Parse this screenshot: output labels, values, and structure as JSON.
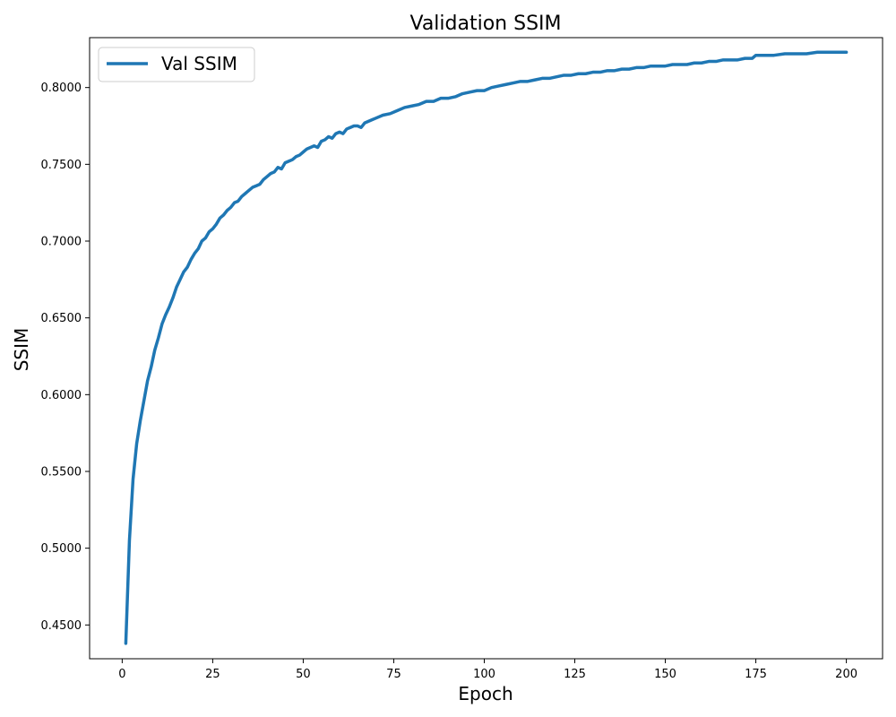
{
  "chart_data": {
    "type": "line",
    "title": "Validation SSIM",
    "xlabel": "Epoch",
    "ylabel": "SSIM",
    "xlim": [
      -9,
      210
    ],
    "ylim": [
      0.428,
      0.8325
    ],
    "x_ticks": [
      0,
      25,
      50,
      75,
      100,
      125,
      150,
      175,
      200
    ],
    "y_ticks": [
      0.45,
      0.5,
      0.55,
      0.6,
      0.65,
      0.7,
      0.75,
      0.8
    ],
    "x_tick_labels": [
      "0",
      "25",
      "50",
      "75",
      "100",
      "125",
      "150",
      "175",
      "200"
    ],
    "y_tick_labels": [
      "0.4500",
      "0.5000",
      "0.5500",
      "0.6000",
      "0.6500",
      "0.7000",
      "0.7500",
      "0.8000"
    ],
    "grid": false,
    "legend_position": "upper-left",
    "series": [
      {
        "name": "Val SSIM",
        "color": "#1f77b4",
        "points": [
          [
            1,
            0.438
          ],
          [
            2,
            0.505
          ],
          [
            3,
            0.545
          ],
          [
            4,
            0.568
          ],
          [
            5,
            0.583
          ],
          [
            6,
            0.596
          ],
          [
            7,
            0.609
          ],
          [
            8,
            0.618
          ],
          [
            9,
            0.629
          ],
          [
            10,
            0.637
          ],
          [
            11,
            0.646
          ],
          [
            12,
            0.652
          ],
          [
            13,
            0.657
          ],
          [
            14,
            0.663
          ],
          [
            15,
            0.67
          ],
          [
            16,
            0.675
          ],
          [
            17,
            0.68
          ],
          [
            18,
            0.683
          ],
          [
            19,
            0.688
          ],
          [
            20,
            0.692
          ],
          [
            21,
            0.695
          ],
          [
            22,
            0.7
          ],
          [
            23,
            0.702
          ],
          [
            24,
            0.706
          ],
          [
            25,
            0.708
          ],
          [
            26,
            0.711
          ],
          [
            27,
            0.715
          ],
          [
            28,
            0.717
          ],
          [
            29,
            0.72
          ],
          [
            30,
            0.722
          ],
          [
            31,
            0.725
          ],
          [
            32,
            0.726
          ],
          [
            33,
            0.729
          ],
          [
            34,
            0.731
          ],
          [
            35,
            0.733
          ],
          [
            36,
            0.735
          ],
          [
            37,
            0.736
          ],
          [
            38,
            0.737
          ],
          [
            39,
            0.74
          ],
          [
            40,
            0.742
          ],
          [
            41,
            0.744
          ],
          [
            42,
            0.745
          ],
          [
            43,
            0.748
          ],
          [
            44,
            0.747
          ],
          [
            45,
            0.751
          ],
          [
            46,
            0.752
          ],
          [
            47,
            0.753
          ],
          [
            48,
            0.755
          ],
          [
            49,
            0.756
          ],
          [
            50,
            0.758
          ],
          [
            51,
            0.76
          ],
          [
            52,
            0.761
          ],
          [
            53,
            0.762
          ],
          [
            54,
            0.761
          ],
          [
            55,
            0.765
          ],
          [
            56,
            0.766
          ],
          [
            57,
            0.768
          ],
          [
            58,
            0.767
          ],
          [
            59,
            0.77
          ],
          [
            60,
            0.771
          ],
          [
            61,
            0.77
          ],
          [
            62,
            0.773
          ],
          [
            63,
            0.774
          ],
          [
            64,
            0.775
          ],
          [
            65,
            0.775
          ],
          [
            66,
            0.774
          ],
          [
            67,
            0.777
          ],
          [
            68,
            0.778
          ],
          [
            69,
            0.779
          ],
          [
            70,
            0.78
          ],
          [
            72,
            0.782
          ],
          [
            74,
            0.783
          ],
          [
            76,
            0.785
          ],
          [
            78,
            0.787
          ],
          [
            80,
            0.788
          ],
          [
            82,
            0.789
          ],
          [
            84,
            0.791
          ],
          [
            86,
            0.791
          ],
          [
            88,
            0.793
          ],
          [
            90,
            0.793
          ],
          [
            92,
            0.794
          ],
          [
            94,
            0.796
          ],
          [
            96,
            0.797
          ],
          [
            98,
            0.798
          ],
          [
            100,
            0.798
          ],
          [
            102,
            0.8
          ],
          [
            104,
            0.801
          ],
          [
            106,
            0.802
          ],
          [
            108,
            0.803
          ],
          [
            110,
            0.804
          ],
          [
            112,
            0.804
          ],
          [
            114,
            0.805
          ],
          [
            116,
            0.806
          ],
          [
            118,
            0.806
          ],
          [
            120,
            0.807
          ],
          [
            122,
            0.808
          ],
          [
            124,
            0.808
          ],
          [
            126,
            0.809
          ],
          [
            128,
            0.809
          ],
          [
            130,
            0.81
          ],
          [
            132,
            0.81
          ],
          [
            134,
            0.811
          ],
          [
            136,
            0.811
          ],
          [
            138,
            0.812
          ],
          [
            140,
            0.812
          ],
          [
            142,
            0.813
          ],
          [
            144,
            0.813
          ],
          [
            146,
            0.814
          ],
          [
            148,
            0.814
          ],
          [
            150,
            0.814
          ],
          [
            152,
            0.815
          ],
          [
            154,
            0.815
          ],
          [
            156,
            0.815
          ],
          [
            158,
            0.816
          ],
          [
            160,
            0.816
          ],
          [
            162,
            0.817
          ],
          [
            164,
            0.817
          ],
          [
            166,
            0.818
          ],
          [
            168,
            0.818
          ],
          [
            170,
            0.818
          ],
          [
            172,
            0.819
          ],
          [
            174,
            0.819
          ],
          [
            175,
            0.821
          ],
          [
            178,
            0.821
          ],
          [
            180,
            0.821
          ],
          [
            183,
            0.822
          ],
          [
            186,
            0.822
          ],
          [
            189,
            0.822
          ],
          [
            192,
            0.823
          ],
          [
            195,
            0.823
          ],
          [
            198,
            0.823
          ],
          [
            200,
            0.823
          ]
        ]
      }
    ]
  }
}
